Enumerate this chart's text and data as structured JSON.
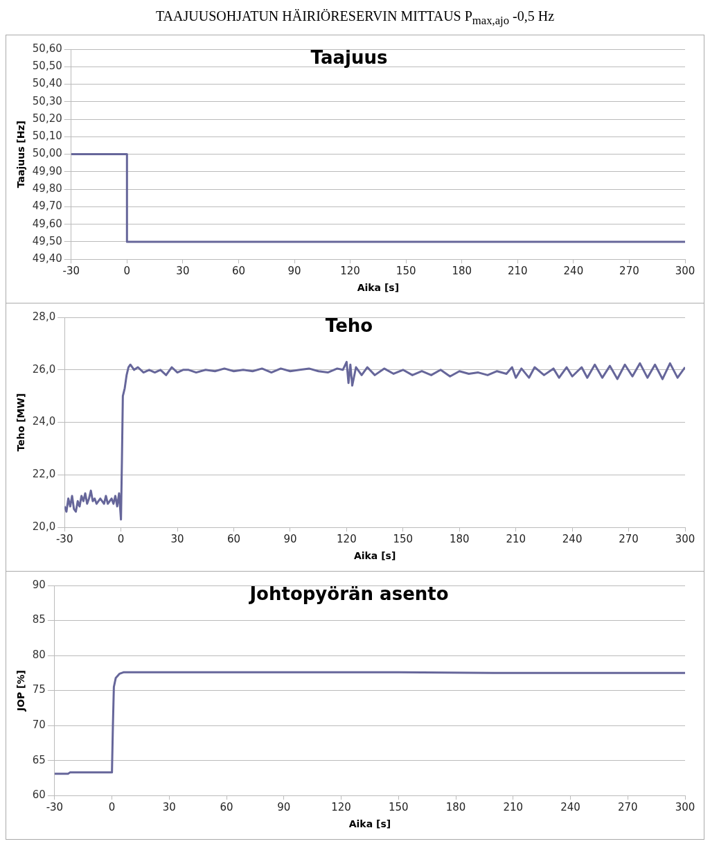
{
  "chart_data": [
    {
      "type": "line",
      "title": "Taajuus",
      "annotations": [
        "TAAJUUSOHJATUN HÄIRIÖRESERVIN MITTAUS P$_{max,ajo}$ -0,5 Hz"
      ],
      "xlabel": "Aika [s]",
      "ylabel": "Taajuus [Hz]",
      "xlim": [
        -30,
        300
      ],
      "xticks": [
        -30,
        0,
        30,
        60,
        90,
        120,
        150,
        180,
        210,
        240,
        270,
        300
      ],
      "ylim": [
        49.4,
        50.6
      ],
      "yticks": [
        {
          "value": 49.4,
          "label": "49,40"
        },
        {
          "value": 49.5,
          "label": "49,50"
        },
        {
          "value": 49.6,
          "label": "49,60"
        },
        {
          "value": 49.7,
          "label": "49,70"
        },
        {
          "value": 49.8,
          "label": "49,80"
        },
        {
          "value": 49.9,
          "label": "49,90"
        },
        {
          "value": 50.0,
          "label": "50,00"
        },
        {
          "value": 50.1,
          "label": "50,10"
        },
        {
          "value": 50.2,
          "label": "50,20"
        },
        {
          "value": 50.3,
          "label": "50,30"
        },
        {
          "value": 50.4,
          "label": "50,40"
        },
        {
          "value": 50.5,
          "label": "50,50"
        },
        {
          "value": 50.6,
          "label": "50,60"
        }
      ],
      "grid": "y",
      "series": [
        {
          "color": "#66669a",
          "x": [
            -30,
            0,
            0,
            300
          ],
          "values": [
            50.0,
            50.0,
            49.5,
            49.5
          ]
        }
      ]
    },
    {
      "type": "line",
      "title": "Teho",
      "xlabel": "Aika [s]",
      "ylabel": "Teho [MW]",
      "xlim": [
        -30,
        300
      ],
      "xticks": [
        -30,
        0,
        30,
        60,
        90,
        120,
        150,
        180,
        210,
        240,
        270,
        300
      ],
      "ylim": [
        20,
        28
      ],
      "yticks": [
        {
          "value": 20,
          "label": "20,0"
        },
        {
          "value": 22,
          "label": "22,0"
        },
        {
          "value": 24,
          "label": "24,0"
        },
        {
          "value": 26,
          "label": "26,0"
        },
        {
          "value": 28,
          "label": "28,0"
        }
      ],
      "grid": "y",
      "series": [
        {
          "color": "#66669a",
          "x": [
            -30,
            -29,
            -28,
            -27,
            -26,
            -25,
            -24,
            -23,
            -22,
            -21,
            -20,
            -19,
            -18,
            -17,
            -16,
            -15,
            -14,
            -13,
            -12,
            -11,
            -10,
            -9,
            -8,
            -7,
            -6,
            -5,
            -4,
            -3,
            -2,
            -1,
            0,
            0.5,
            1,
            2,
            3,
            4,
            5,
            7,
            9,
            12,
            15,
            18,
            21,
            24,
            27,
            30,
            33,
            36,
            40,
            45,
            50,
            55,
            60,
            65,
            70,
            75,
            80,
            85,
            90,
            95,
            100,
            105,
            110,
            115,
            118,
            120,
            121,
            122,
            123,
            125,
            128,
            131,
            135,
            140,
            145,
            150,
            155,
            160,
            165,
            170,
            175,
            180,
            185,
            190,
            195,
            200,
            205,
            208,
            210,
            213,
            217,
            220,
            225,
            230,
            233,
            237,
            240,
            245,
            248,
            252,
            256,
            260,
            264,
            268,
            272,
            276,
            280,
            284,
            288,
            292,
            296,
            300
          ],
          "values": [
            20.8,
            20.6,
            21.1,
            20.8,
            21.2,
            20.7,
            20.6,
            21.0,
            20.8,
            21.2,
            21.0,
            21.3,
            20.9,
            21.1,
            21.4,
            21.0,
            21.1,
            20.9,
            21.0,
            21.1,
            21.0,
            20.9,
            21.2,
            20.9,
            21.0,
            21.1,
            20.9,
            21.2,
            20.8,
            21.3,
            20.3,
            22.5,
            25.0,
            25.3,
            25.8,
            26.1,
            26.2,
            26.0,
            26.1,
            25.9,
            26.0,
            25.9,
            26.0,
            25.8,
            26.1,
            25.9,
            26.0,
            26.0,
            25.9,
            26.0,
            25.95,
            26.05,
            25.95,
            26.0,
            25.95,
            26.05,
            25.9,
            26.05,
            25.95,
            26.0,
            26.05,
            25.95,
            25.9,
            26.05,
            26.0,
            26.3,
            25.5,
            26.2,
            25.4,
            26.1,
            25.8,
            26.1,
            25.8,
            26.05,
            25.85,
            26.0,
            25.8,
            25.95,
            25.8,
            26.0,
            25.75,
            25.95,
            25.85,
            25.9,
            25.8,
            25.95,
            25.85,
            26.1,
            25.7,
            26.05,
            25.7,
            26.1,
            25.8,
            26.05,
            25.7,
            26.1,
            25.75,
            26.1,
            25.7,
            26.2,
            25.7,
            26.15,
            25.65,
            26.2,
            25.75,
            26.25,
            25.7,
            26.2,
            25.65,
            26.25,
            25.7,
            26.1
          ]
        }
      ]
    },
    {
      "type": "line",
      "title": "Johtopyörän asento",
      "xlabel": "Aika [s]",
      "ylabel": "JOP [%]",
      "xlim": [
        -30,
        300
      ],
      "xticks": [
        -30,
        0,
        30,
        60,
        90,
        120,
        150,
        180,
        210,
        240,
        270,
        300
      ],
      "ylim": [
        60,
        90
      ],
      "yticks": [
        60,
        65,
        70,
        75,
        80,
        85,
        90
      ],
      "grid": "y",
      "series": [
        {
          "color": "#66669a",
          "x": [
            -30,
            -23,
            -22,
            0,
            0.5,
            1,
            2,
            4,
            6,
            50,
            100,
            150,
            200,
            250,
            300
          ],
          "values": [
            63.1,
            63.1,
            63.3,
            63.3,
            70,
            75.5,
            76.8,
            77.4,
            77.6,
            77.6,
            77.6,
            77.6,
            77.5,
            77.5,
            77.5
          ]
        }
      ]
    }
  ]
}
